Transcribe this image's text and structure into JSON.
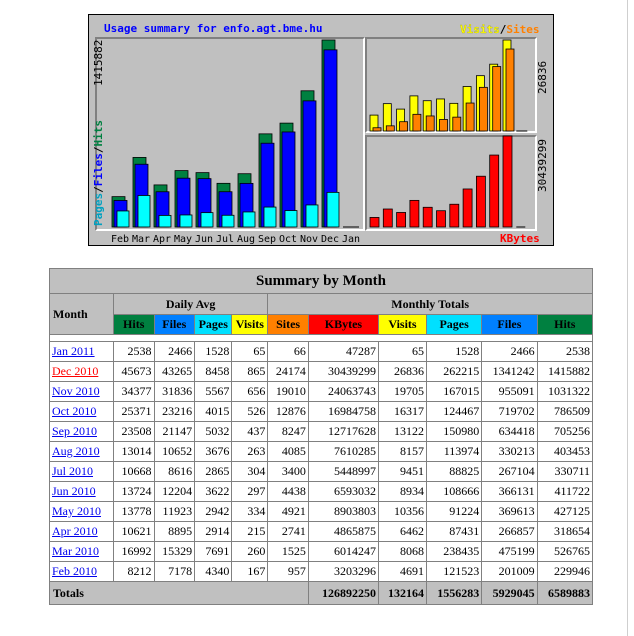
{
  "chart": {
    "title": "Usage summary for enfo.agt.bme.hu",
    "legend_top": {
      "visits": "Visits",
      "slash": "/",
      "sites": "Sites"
    },
    "legend_bottom": "KBytes",
    "left_axis": {
      "pages": "Pages",
      "files": "Files",
      "hits": "Hits",
      "max": "1415882"
    },
    "right_top_max": "26836",
    "right_bottom_max": "30439299",
    "months": [
      "Feb",
      "Mar",
      "Apr",
      "May",
      "Jun",
      "Jul",
      "Aug",
      "Sep",
      "Oct",
      "Nov",
      "Dec",
      "Jan"
    ],
    "colors": {
      "hits": "#008040",
      "files": "#0000ff",
      "pages": "#00ffff",
      "visits": "#ffff00",
      "sites": "#ff8000",
      "kbytes": "#ff0000",
      "title": "#0000ff"
    }
  },
  "chart_data": {
    "type": "bar",
    "categories": [
      "Feb",
      "Mar",
      "Apr",
      "May",
      "Jun",
      "Jul",
      "Aug",
      "Sep",
      "Oct",
      "Nov",
      "Dec",
      "Jan"
    ],
    "series": [
      {
        "name": "Hits",
        "values": [
          229946,
          526765,
          318654,
          427125,
          411722,
          330711,
          403453,
          705256,
          786509,
          1031322,
          1415882,
          2538
        ]
      },
      {
        "name": "Files",
        "values": [
          201009,
          475199,
          266857,
          369613,
          366131,
          267104,
          330213,
          634418,
          719702,
          955091,
          1341242,
          2466
        ]
      },
      {
        "name": "Pages",
        "values": [
          121523,
          238435,
          87431,
          91224,
          108666,
          88825,
          113974,
          150980,
          124467,
          167015,
          262215,
          1528
        ]
      },
      {
        "name": "Visits",
        "values": [
          4691,
          8068,
          6462,
          10356,
          8934,
          9451,
          8157,
          13122,
          16317,
          19705,
          26836,
          65
        ]
      },
      {
        "name": "Sites",
        "values": [
          957,
          1525,
          2741,
          4921,
          4438,
          3400,
          4085,
          8247,
          12876,
          19010,
          24174,
          66
        ]
      },
      {
        "name": "KBytes",
        "values": [
          3203296,
          6014247,
          4865875,
          8903803,
          6593032,
          5448997,
          7610285,
          12717628,
          16984758,
          24063743,
          30439299,
          47287
        ]
      }
    ]
  },
  "table": {
    "title": "Summary by Month",
    "month_label": "Month",
    "daily_avg_label": "Daily Avg",
    "monthly_totals_label": "Monthly Totals",
    "columns": [
      {
        "label": "Hits",
        "color": "#008040",
        "text": "#000000"
      },
      {
        "label": "Files",
        "color": "#0080ff",
        "text": "#000000"
      },
      {
        "label": "Pages",
        "color": "#00e0ff",
        "text": "#000000"
      },
      {
        "label": "Visits",
        "color": "#ffff00",
        "text": "#000000"
      },
      {
        "label": "Sites",
        "color": "#ff8000",
        "text": "#000000"
      },
      {
        "label": "KBytes",
        "color": "#ff0000",
        "text": "#000000"
      },
      {
        "label": "Visits",
        "color": "#ffff00",
        "text": "#000000"
      },
      {
        "label": "Pages",
        "color": "#00e0ff",
        "text": "#000000"
      },
      {
        "label": "Files",
        "color": "#0080ff",
        "text": "#000000"
      },
      {
        "label": "Hits",
        "color": "#008040",
        "text": "#000000"
      }
    ],
    "rows": [
      {
        "month": "Jan 2011",
        "current": false,
        "v": [
          "2538",
          "2466",
          "1528",
          "65",
          "66",
          "47287",
          "65",
          "1528",
          "2466",
          "2538"
        ]
      },
      {
        "month": "Dec 2010",
        "current": true,
        "v": [
          "45673",
          "43265",
          "8458",
          "865",
          "24174",
          "30439299",
          "26836",
          "262215",
          "1341242",
          "1415882"
        ]
      },
      {
        "month": "Nov 2010",
        "current": false,
        "v": [
          "34377",
          "31836",
          "5567",
          "656",
          "19010",
          "24063743",
          "19705",
          "167015",
          "955091",
          "1031322"
        ]
      },
      {
        "month": "Oct 2010",
        "current": false,
        "v": [
          "25371",
          "23216",
          "4015",
          "526",
          "12876",
          "16984758",
          "16317",
          "124467",
          "719702",
          "786509"
        ]
      },
      {
        "month": "Sep 2010",
        "current": false,
        "v": [
          "23508",
          "21147",
          "5032",
          "437",
          "8247",
          "12717628",
          "13122",
          "150980",
          "634418",
          "705256"
        ]
      },
      {
        "month": "Aug 2010",
        "current": false,
        "v": [
          "13014",
          "10652",
          "3676",
          "263",
          "4085",
          "7610285",
          "8157",
          "113974",
          "330213",
          "403453"
        ]
      },
      {
        "month": "Jul 2010",
        "current": false,
        "v": [
          "10668",
          "8616",
          "2865",
          "304",
          "3400",
          "5448997",
          "9451",
          "88825",
          "267104",
          "330711"
        ]
      },
      {
        "month": "Jun 2010",
        "current": false,
        "v": [
          "13724",
          "12204",
          "3622",
          "297",
          "4438",
          "6593032",
          "8934",
          "108666",
          "366131",
          "411722"
        ]
      },
      {
        "month": "May 2010",
        "current": false,
        "v": [
          "13778",
          "11923",
          "2942",
          "334",
          "4921",
          "8903803",
          "10356",
          "91224",
          "369613",
          "427125"
        ]
      },
      {
        "month": "Apr 2010",
        "current": false,
        "v": [
          "10621",
          "8895",
          "2914",
          "215",
          "2741",
          "4865875",
          "6462",
          "87431",
          "266857",
          "318654"
        ]
      },
      {
        "month": "Mar 2010",
        "current": false,
        "v": [
          "16992",
          "15329",
          "7691",
          "260",
          "1525",
          "6014247",
          "8068",
          "238435",
          "475199",
          "526765"
        ]
      },
      {
        "month": "Feb 2010",
        "current": false,
        "v": [
          "8212",
          "7178",
          "4340",
          "167",
          "957",
          "3203296",
          "4691",
          "121523",
          "201009",
          "229946"
        ]
      }
    ],
    "totals": {
      "label": "Totals",
      "v": [
        "126892250",
        "132164",
        "1556283",
        "5929045",
        "6589883"
      ]
    }
  }
}
